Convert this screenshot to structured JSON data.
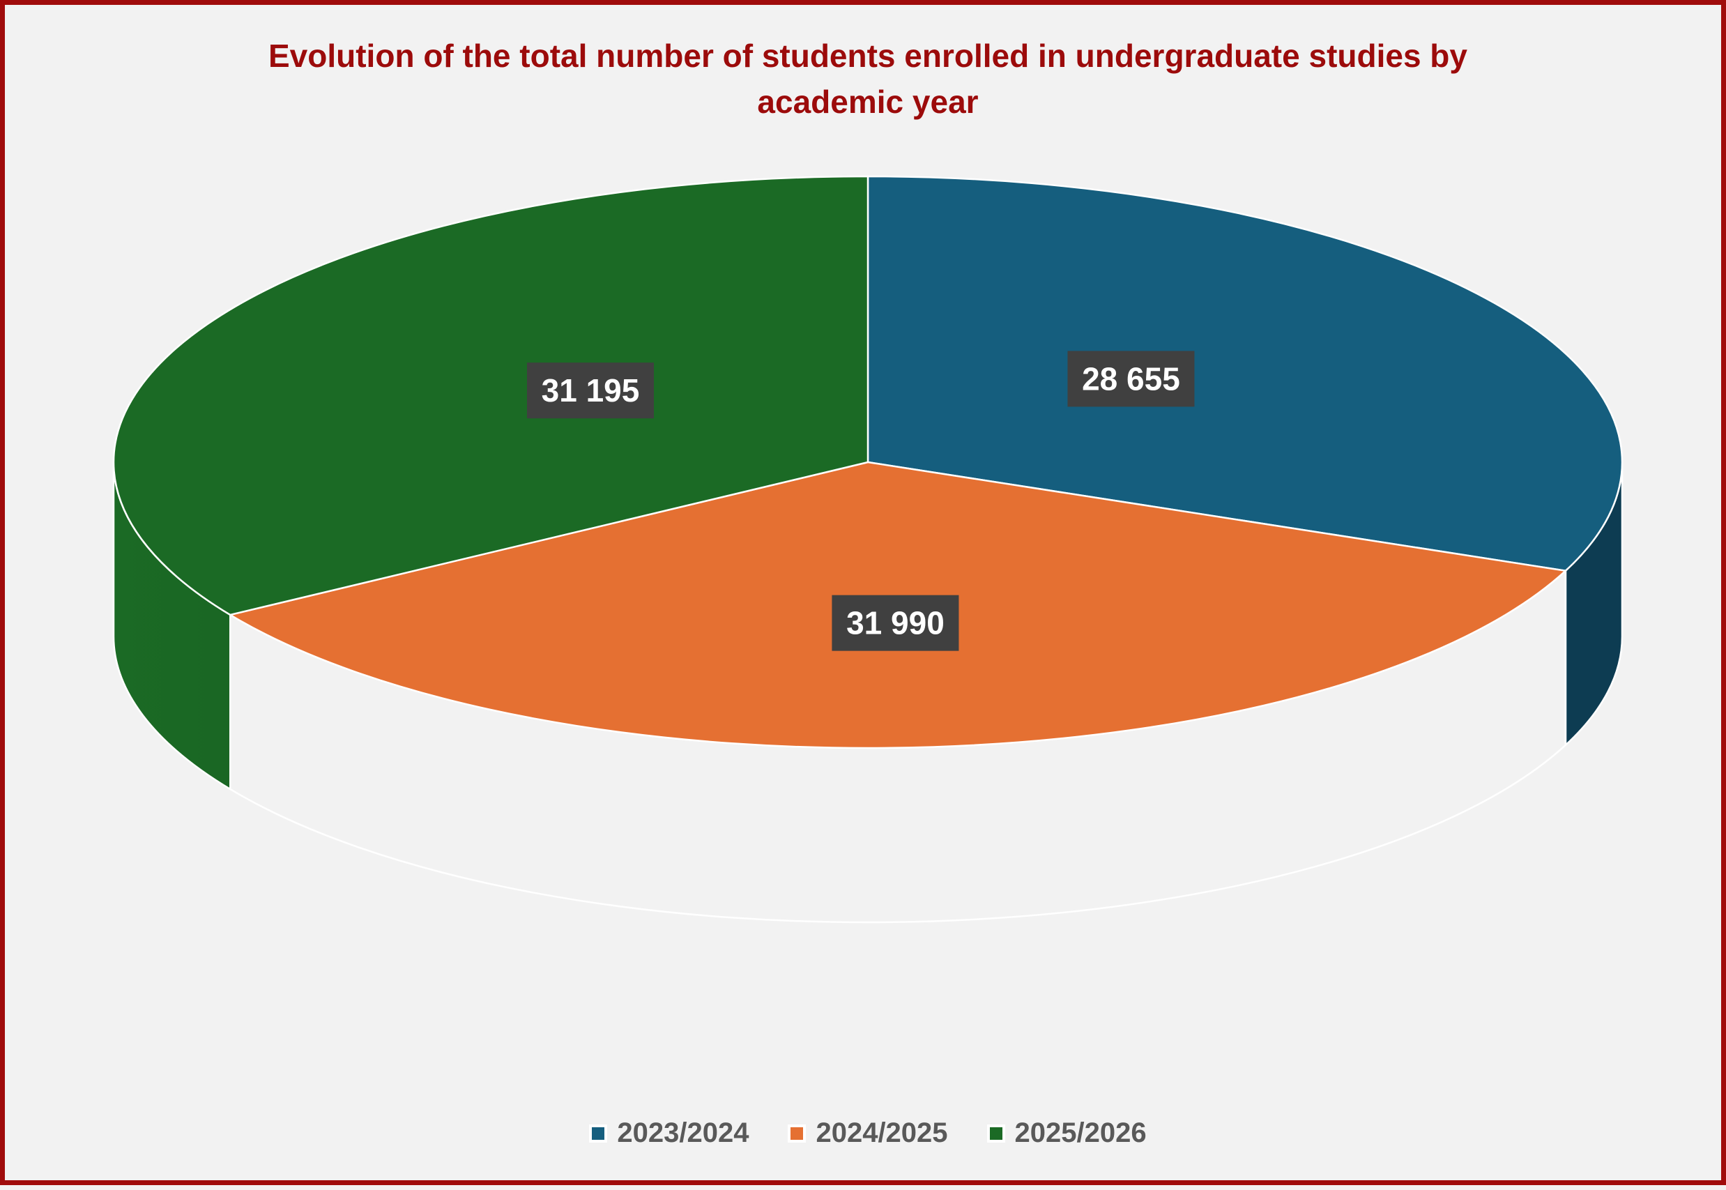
{
  "chart_data": {
    "type": "pie",
    "title": "Evolution of the total number of students enrolled in undergraduate studies by academic year",
    "title_lines": [
      "Evolution of the total number of students enrolled in undergraduate studies by",
      "academic year"
    ],
    "categories": [
      "2023/2024",
      "2024/2025",
      "2025/2026"
    ],
    "values": [
      28655,
      31990,
      31195
    ],
    "value_labels": [
      "28 655",
      "31 990",
      "31 195"
    ],
    "colors": [
      "#155e7e",
      "#e57032",
      "#1b6a25"
    ],
    "side_colors": [
      "#0d3c52",
      "#5a2a14",
      "#114a18"
    ],
    "style": "3d",
    "legend_position": "bottom"
  }
}
